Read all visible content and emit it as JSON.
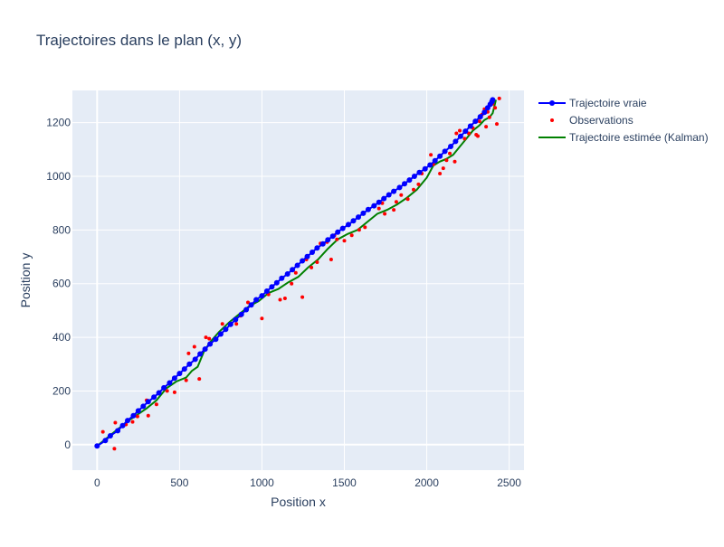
{
  "chart_data": {
    "type": "scatter",
    "title": "Trajectoires dans le plan (x, y)",
    "xlabel": "Position x",
    "ylabel": "Position y",
    "xlim": [
      -150,
      2590
    ],
    "ylim": [
      -95,
      1320
    ],
    "x_ticks": [
      0,
      500,
      1000,
      1500,
      2000,
      2500
    ],
    "y_ticks": [
      0,
      200,
      400,
      600,
      800,
      1000,
      1200
    ],
    "grid": true,
    "legend": "top-right",
    "series": [
      {
        "name": "Trajectoire vraie",
        "mode": "lines+markers",
        "color": "#0000ff",
        "x": [
          0,
          50,
          80,
          125,
          155,
          185,
          220,
          250,
          280,
          310,
          345,
          375,
          405,
          440,
          470,
          500,
          530,
          560,
          595,
          625,
          655,
          685,
          720,
          750,
          780,
          810,
          840,
          875,
          905,
          935,
          965,
          1000,
          1030,
          1060,
          1090,
          1120,
          1155,
          1185,
          1215,
          1245,
          1275,
          1305,
          1335,
          1370,
          1400,
          1430,
          1460,
          1490,
          1525,
          1555,
          1585,
          1615,
          1645,
          1680,
          1710,
          1740,
          1770,
          1800,
          1835,
          1865,
          1895,
          1925,
          1955,
          1990,
          2020,
          2050,
          2080,
          2110,
          2145,
          2175,
          2205,
          2235,
          2265,
          2295,
          2325,
          2350,
          2370,
          2385,
          2395,
          2400
        ],
        "y": [
          -5,
          15,
          33,
          52,
          71,
          90,
          108,
          126,
          143,
          160,
          177,
          193,
          212,
          230,
          248,
          265,
          282,
          300,
          318,
          338,
          356,
          375,
          393,
          412,
          430,
          448,
          466,
          485,
          503,
          521,
          540,
          555,
          572,
          588,
          603,
          620,
          636,
          652,
          668,
          685,
          701,
          717,
          733,
          748,
          763,
          777,
          792,
          806,
          820,
          834,
          848,
          862,
          876,
          890,
          903,
          917,
          931,
          944,
          958,
          972,
          986,
          1000,
          1014,
          1028,
          1042,
          1058,
          1075,
          1093,
          1111,
          1130,
          1149,
          1168,
          1187,
          1205,
          1222,
          1238,
          1255,
          1268,
          1278,
          1285
        ]
      },
      {
        "name": "Observations",
        "mode": "markers",
        "color": "#ff0000",
        "x": [
          0,
          35,
          105,
          110,
          175,
          215,
          245,
          300,
          310,
          360,
          425,
          470,
          540,
          555,
          590,
          620,
          660,
          680,
          760,
          845,
          870,
          915,
          1000,
          1040,
          1060,
          1110,
          1140,
          1180,
          1205,
          1245,
          1270,
          1300,
          1335,
          1355,
          1395,
          1420,
          1440,
          1455,
          1500,
          1545,
          1590,
          1625,
          1710,
          1730,
          1745,
          1800,
          1815,
          1845,
          1885,
          1920,
          1950,
          1970,
          2025,
          2040,
          2080,
          2100,
          2120,
          2140,
          2170,
          2180,
          2200,
          2230,
          2255,
          2280,
          2300,
          2310,
          2320,
          2335,
          2350,
          2360,
          2370,
          2380,
          2400,
          2415,
          2425,
          2440
        ],
        "y": [
          -5,
          48,
          -15,
          82,
          75,
          85,
          105,
          165,
          108,
          150,
          200,
          195,
          240,
          340,
          365,
          245,
          400,
          395,
          450,
          450,
          480,
          530,
          470,
          560,
          590,
          540,
          545,
          600,
          640,
          550,
          690,
          660,
          680,
          750,
          755,
          690,
          780,
          765,
          760,
          780,
          800,
          810,
          880,
          900,
          860,
          875,
          905,
          930,
          915,
          950,
          970,
          1010,
          1080,
          1045,
          1010,
          1030,
          1060,
          1085,
          1055,
          1160,
          1170,
          1140,
          1160,
          1180,
          1155,
          1150,
          1205,
          1230,
          1250,
          1185,
          1240,
          1220,
          1270,
          1255,
          1195,
          1290
        ]
      },
      {
        "name": "Trajectoire estimée (Kalman)",
        "mode": "lines",
        "color": "#008000",
        "x": [
          0,
          60,
          120,
          180,
          240,
          300,
          360,
          420,
          480,
          540,
          575,
          610,
          650,
          690,
          740,
          800,
          860,
          920,
          980,
          1040,
          1100,
          1160,
          1220,
          1280,
          1340,
          1400,
          1460,
          1520,
          1580,
          1640,
          1700,
          1760,
          1820,
          1880,
          1940,
          2000,
          2040,
          2080,
          2120,
          2160,
          2200,
          2240,
          2280,
          2320,
          2350,
          2380,
          2400,
          2410,
          2420
        ],
        "y": [
          -5,
          25,
          55,
          85,
          110,
          135,
          165,
          210,
          235,
          250,
          275,
          290,
          350,
          385,
          420,
          455,
          485,
          515,
          535,
          565,
          580,
          605,
          625,
          660,
          690,
          730,
          765,
          785,
          800,
          830,
          860,
          875,
          895,
          920,
          950,
          995,
          1040,
          1055,
          1065,
          1080,
          1110,
          1140,
          1170,
          1190,
          1210,
          1220,
          1235,
          1260,
          1285
        ]
      }
    ]
  }
}
